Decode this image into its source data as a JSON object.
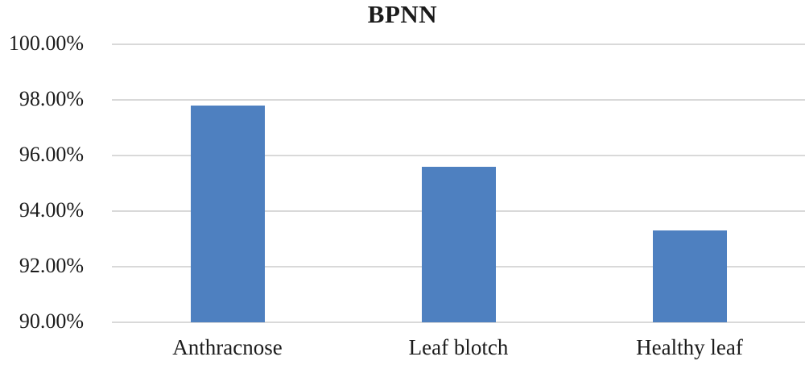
{
  "chart_data": {
    "type": "bar",
    "title": "BPNN",
    "categories": [
      "Anthracnose",
      "Leaf blotch",
      "Healthy leaf"
    ],
    "values": [
      97.8,
      95.6,
      93.3
    ],
    "value_unit": "percent",
    "xlabel": "",
    "ylabel": "",
    "ylim": [
      90,
      100
    ],
    "ytick_values": [
      100,
      98,
      96,
      94,
      92,
      90
    ],
    "ytick_labels": [
      "100.00%",
      "98.00%",
      "96.00%",
      "94.00%",
      "92.00%",
      "90.00%"
    ],
    "grid": true,
    "legend_position": "none",
    "bar_color": "#4E80C0",
    "gridline_color": "#D9D9D9",
    "text_color": "#1C1C1C"
  }
}
